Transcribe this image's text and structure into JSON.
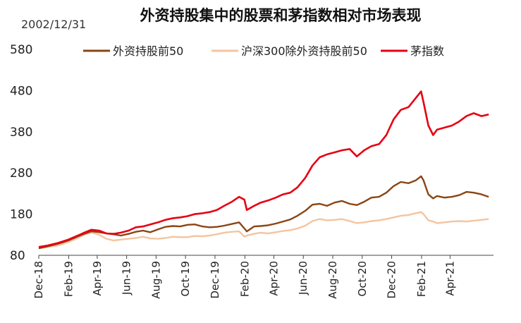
{
  "chart_data": {
    "type": "line",
    "title": "外资持股集中的股票和茅指数相对市场表现",
    "base_date_note": "2002/12/31",
    "xlabel": "",
    "ylabel": "",
    "ylim": [
      80,
      580
    ],
    "yticks": [
      80,
      180,
      280,
      380,
      480,
      580
    ],
    "x_tick_labels": [
      "Dec-18",
      "Feb-19",
      "Apr-19",
      "Jun-19",
      "Aug-19",
      "Oct-19",
      "Dec-19",
      "Feb-20",
      "Apr-20",
      "Jun-20",
      "Aug-20",
      "Oct-20",
      "Dec-20",
      "Feb-21",
      "Apr-21"
    ],
    "x_range": [
      "2018-12-01",
      "2021-06-30"
    ],
    "grid": false,
    "legend_position": "top",
    "series": [
      {
        "name": "外资持股前50",
        "color": "#8B4513",
        "points": [
          [
            "2018-12-01",
            97
          ],
          [
            "2018-12-20",
            102
          ],
          [
            "2019-01-10",
            108
          ],
          [
            "2019-01-31",
            116
          ],
          [
            "2019-02-20",
            126
          ],
          [
            "2019-03-05",
            132
          ],
          [
            "2019-03-20",
            138
          ],
          [
            "2019-04-05",
            136
          ],
          [
            "2019-04-20",
            133
          ],
          [
            "2019-05-05",
            131
          ],
          [
            "2019-05-20",
            128
          ],
          [
            "2019-06-05",
            132
          ],
          [
            "2019-06-20",
            137
          ],
          [
            "2019-07-05",
            140
          ],
          [
            "2019-07-20",
            136
          ],
          [
            "2019-08-05",
            143
          ],
          [
            "2019-08-20",
            149
          ],
          [
            "2019-09-05",
            151
          ],
          [
            "2019-09-20",
            150
          ],
          [
            "2019-10-05",
            154
          ],
          [
            "2019-10-20",
            155
          ],
          [
            "2019-11-05",
            150
          ],
          [
            "2019-11-20",
            148
          ],
          [
            "2019-12-05",
            149
          ],
          [
            "2019-12-20",
            152
          ],
          [
            "2020-01-05",
            156
          ],
          [
            "2020-01-20",
            160
          ],
          [
            "2020-01-31",
            145
          ],
          [
            "2020-02-05",
            138
          ],
          [
            "2020-02-20",
            150
          ],
          [
            "2020-03-05",
            151
          ],
          [
            "2020-03-20",
            153
          ],
          [
            "2020-04-05",
            157
          ],
          [
            "2020-04-20",
            162
          ],
          [
            "2020-05-05",
            167
          ],
          [
            "2020-05-20",
            176
          ],
          [
            "2020-06-05",
            188
          ],
          [
            "2020-06-20",
            203
          ],
          [
            "2020-07-05",
            205
          ],
          [
            "2020-07-20",
            200
          ],
          [
            "2020-08-05",
            208
          ],
          [
            "2020-08-20",
            212
          ],
          [
            "2020-09-05",
            205
          ],
          [
            "2020-09-20",
            202
          ],
          [
            "2020-10-05",
            210
          ],
          [
            "2020-10-20",
            220
          ],
          [
            "2020-11-05",
            222
          ],
          [
            "2020-11-20",
            232
          ],
          [
            "2020-12-05",
            248
          ],
          [
            "2020-12-20",
            258
          ],
          [
            "2021-01-05",
            255
          ],
          [
            "2021-01-20",
            262
          ],
          [
            "2021-01-31",
            272
          ],
          [
            "2021-02-05",
            262
          ],
          [
            "2021-02-15",
            228
          ],
          [
            "2021-02-25",
            218
          ],
          [
            "2021-03-05",
            224
          ],
          [
            "2021-03-20",
            220
          ],
          [
            "2021-04-05",
            222
          ],
          [
            "2021-04-20",
            226
          ],
          [
            "2021-05-05",
            234
          ],
          [
            "2021-05-20",
            232
          ],
          [
            "2021-06-05",
            228
          ],
          [
            "2021-06-20",
            222
          ]
        ]
      },
      {
        "name": "沪深300除外资持股前50",
        "color": "#F4C4A0",
        "points": [
          [
            "2018-12-01",
            97
          ],
          [
            "2018-12-20",
            100
          ],
          [
            "2019-01-10",
            104
          ],
          [
            "2019-01-31",
            112
          ],
          [
            "2019-02-20",
            122
          ],
          [
            "2019-03-05",
            130
          ],
          [
            "2019-03-20",
            135
          ],
          [
            "2019-04-05",
            130
          ],
          [
            "2019-04-20",
            120
          ],
          [
            "2019-05-05",
            116
          ],
          [
            "2019-05-20",
            118
          ],
          [
            "2019-06-05",
            120
          ],
          [
            "2019-06-20",
            122
          ],
          [
            "2019-07-05",
            125
          ],
          [
            "2019-07-20",
            121
          ],
          [
            "2019-08-05",
            120
          ],
          [
            "2019-08-20",
            122
          ],
          [
            "2019-09-05",
            125
          ],
          [
            "2019-09-20",
            124
          ],
          [
            "2019-10-05",
            124
          ],
          [
            "2019-10-20",
            127
          ],
          [
            "2019-11-05",
            126
          ],
          [
            "2019-11-20",
            128
          ],
          [
            "2019-12-05",
            131
          ],
          [
            "2019-12-20",
            135
          ],
          [
            "2020-01-05",
            137
          ],
          [
            "2020-01-20",
            138
          ],
          [
            "2020-01-31",
            125
          ],
          [
            "2020-02-05",
            128
          ],
          [
            "2020-02-20",
            132
          ],
          [
            "2020-03-05",
            135
          ],
          [
            "2020-03-20",
            133
          ],
          [
            "2020-04-05",
            136
          ],
          [
            "2020-04-20",
            139
          ],
          [
            "2020-05-05",
            141
          ],
          [
            "2020-05-20",
            145
          ],
          [
            "2020-06-05",
            152
          ],
          [
            "2020-06-20",
            163
          ],
          [
            "2020-07-05",
            168
          ],
          [
            "2020-07-20",
            165
          ],
          [
            "2020-08-05",
            166
          ],
          [
            "2020-08-20",
            168
          ],
          [
            "2020-09-05",
            163
          ],
          [
            "2020-09-20",
            158
          ],
          [
            "2020-10-05",
            160
          ],
          [
            "2020-10-20",
            163
          ],
          [
            "2020-11-05",
            165
          ],
          [
            "2020-11-20",
            168
          ],
          [
            "2020-12-05",
            172
          ],
          [
            "2020-12-20",
            176
          ],
          [
            "2021-01-05",
            178
          ],
          [
            "2021-01-20",
            182
          ],
          [
            "2021-01-31",
            185
          ],
          [
            "2021-02-05",
            180
          ],
          [
            "2021-02-15",
            165
          ],
          [
            "2021-02-25",
            162
          ],
          [
            "2021-03-05",
            158
          ],
          [
            "2021-03-20",
            160
          ],
          [
            "2021-04-05",
            162
          ],
          [
            "2021-04-20",
            163
          ],
          [
            "2021-05-05",
            162
          ],
          [
            "2021-05-20",
            164
          ],
          [
            "2021-06-05",
            166
          ],
          [
            "2021-06-20",
            168
          ]
        ]
      },
      {
        "name": "茅指数",
        "color": "#E60012",
        "points": [
          [
            "2018-12-01",
            100
          ],
          [
            "2018-12-20",
            104
          ],
          [
            "2019-01-10",
            110
          ],
          [
            "2019-01-31",
            118
          ],
          [
            "2019-02-20",
            128
          ],
          [
            "2019-03-05",
            135
          ],
          [
            "2019-03-20",
            142
          ],
          [
            "2019-04-05",
            140
          ],
          [
            "2019-04-20",
            133
          ],
          [
            "2019-05-05",
            132
          ],
          [
            "2019-05-20",
            135
          ],
          [
            "2019-06-05",
            140
          ],
          [
            "2019-06-20",
            148
          ],
          [
            "2019-07-05",
            150
          ],
          [
            "2019-07-20",
            155
          ],
          [
            "2019-08-05",
            160
          ],
          [
            "2019-08-20",
            166
          ],
          [
            "2019-09-05",
            170
          ],
          [
            "2019-09-20",
            172
          ],
          [
            "2019-10-05",
            175
          ],
          [
            "2019-10-20",
            180
          ],
          [
            "2019-11-05",
            182
          ],
          [
            "2019-11-20",
            185
          ],
          [
            "2019-12-05",
            190
          ],
          [
            "2019-12-20",
            200
          ],
          [
            "2020-01-05",
            210
          ],
          [
            "2020-01-20",
            222
          ],
          [
            "2020-01-31",
            215
          ],
          [
            "2020-02-05",
            190
          ],
          [
            "2020-02-20",
            200
          ],
          [
            "2020-03-05",
            208
          ],
          [
            "2020-03-20",
            213
          ],
          [
            "2020-04-05",
            220
          ],
          [
            "2020-04-20",
            228
          ],
          [
            "2020-05-05",
            232
          ],
          [
            "2020-05-20",
            245
          ],
          [
            "2020-06-05",
            268
          ],
          [
            "2020-06-20",
            298
          ],
          [
            "2020-07-05",
            318
          ],
          [
            "2020-07-20",
            325
          ],
          [
            "2020-08-05",
            330
          ],
          [
            "2020-08-20",
            335
          ],
          [
            "2020-09-05",
            338
          ],
          [
            "2020-09-20",
            320
          ],
          [
            "2020-10-05",
            335
          ],
          [
            "2020-10-20",
            345
          ],
          [
            "2020-11-05",
            350
          ],
          [
            "2020-11-20",
            372
          ],
          [
            "2020-12-05",
            410
          ],
          [
            "2020-12-20",
            433
          ],
          [
            "2021-01-05",
            440
          ],
          [
            "2021-01-20",
            462
          ],
          [
            "2021-01-31",
            478
          ],
          [
            "2021-02-05",
            452
          ],
          [
            "2021-02-15",
            395
          ],
          [
            "2021-02-25",
            372
          ],
          [
            "2021-03-05",
            385
          ],
          [
            "2021-03-20",
            390
          ],
          [
            "2021-04-05",
            395
          ],
          [
            "2021-04-20",
            405
          ],
          [
            "2021-05-05",
            418
          ],
          [
            "2021-05-20",
            425
          ],
          [
            "2021-06-05",
            418
          ],
          [
            "2021-06-20",
            422
          ]
        ]
      }
    ]
  }
}
